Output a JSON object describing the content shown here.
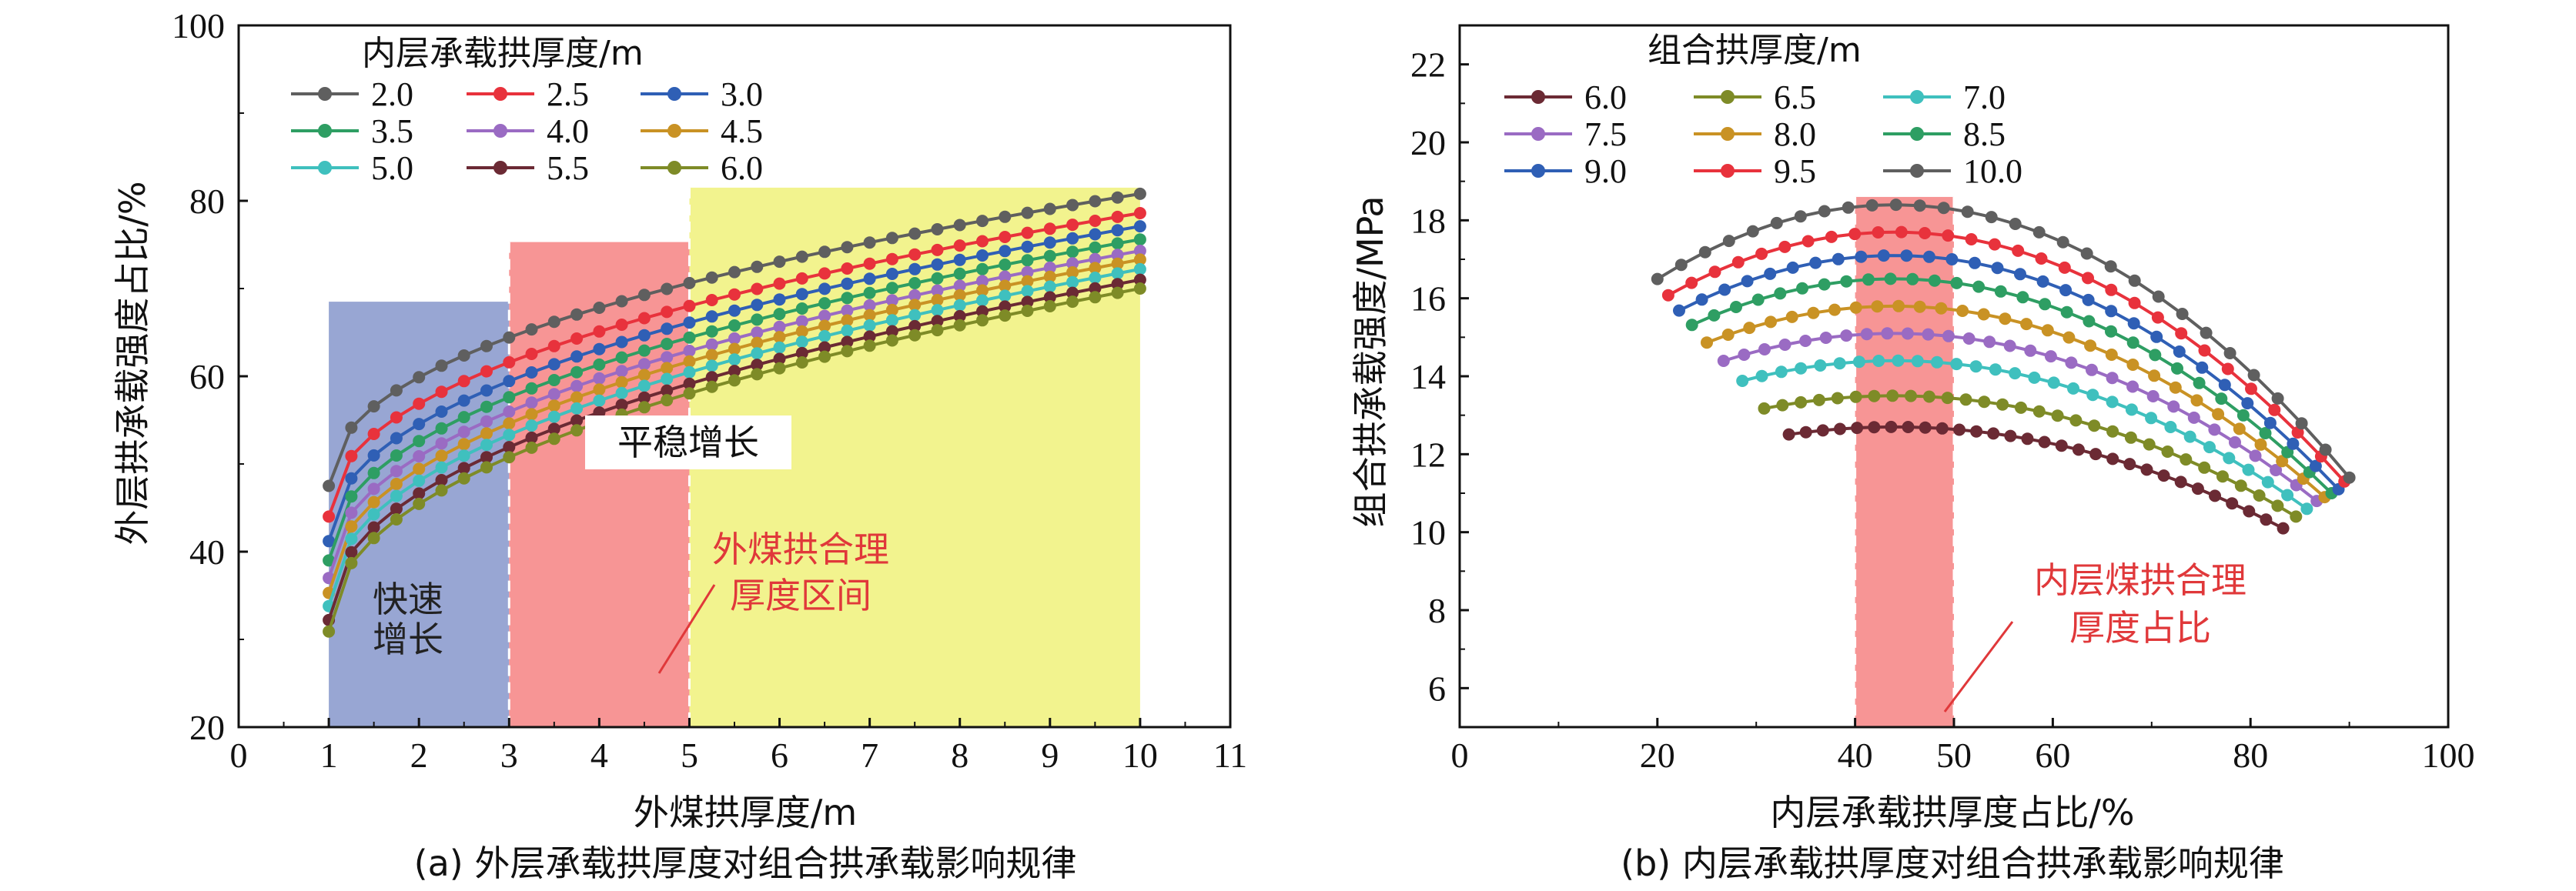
{
  "chart_data": [
    {
      "type": "line",
      "caption": "(a) 外层承载拱厚度对组合拱承载影响规律",
      "xlabel": "外煤拱厚度/m",
      "ylabel": "外层拱承载强度占比/%",
      "xlim": [
        0,
        11
      ],
      "ylim": [
        20,
        100
      ],
      "xticks": [
        0,
        1,
        2,
        3,
        4,
        5,
        6,
        7,
        8,
        9,
        10,
        11
      ],
      "yticks": [
        20,
        40,
        60,
        80,
        100
      ],
      "legend_title": "内层承载拱厚度/m",
      "legend_position": "top-left",
      "grid": false,
      "regions": [
        {
          "label": "快速\n增长",
          "x": [
            1,
            3
          ],
          "ymax": 68.5,
          "color": "#98A6D3",
          "label_color": "#222222"
        },
        {
          "label": "平稳增长",
          "x": [
            3,
            5
          ],
          "ymax": 75.3,
          "color": "#F79595",
          "label_color": "#111111"
        },
        {
          "label": "",
          "x": [
            5,
            10
          ],
          "ymax": 81.5,
          "color": "#F2F38E",
          "label_color": "#111111"
        }
      ],
      "region_dividers": [
        3,
        5
      ],
      "annotation": {
        "text": [
          "外煤拱合理",
          "厚度区间"
        ],
        "color": "#E0383A"
      },
      "x": [
        1.0,
        1.25,
        1.5,
        1.75,
        2.0,
        2.25,
        2.5,
        2.75,
        3.0,
        3.25,
        3.5,
        3.75,
        4.0,
        4.25,
        4.5,
        4.75,
        5.0,
        5.25,
        5.5,
        5.75,
        6.0,
        6.25,
        6.5,
        6.75,
        7.0,
        7.25,
        7.5,
        7.75,
        8.0,
        8.25,
        8.5,
        8.75,
        9.0,
        9.25,
        9.5,
        9.75,
        10.0
      ],
      "series": [
        {
          "name": "2.0",
          "color": "#5F5F5F",
          "y0": 47.5,
          "y1": 80.8
        },
        {
          "name": "2.5",
          "color": "#E8323C",
          "y0": 44.0,
          "y1": 78.6
        },
        {
          "name": "3.0",
          "color": "#2F5FB5",
          "y0": 41.2,
          "y1": 77.1
        },
        {
          "name": "3.5",
          "color": "#2E9E63",
          "y0": 39.0,
          "y1": 75.6
        },
        {
          "name": "4.0",
          "color": "#9A6BC3",
          "y0": 37.0,
          "y1": 74.3
        },
        {
          "name": "4.5",
          "color": "#C99224",
          "y0": 35.3,
          "y1": 73.3
        },
        {
          "name": "5.0",
          "color": "#3FC0BE",
          "y0": 33.8,
          "y1": 72.2
        },
        {
          "name": "5.5",
          "color": "#6B2A34",
          "y0": 32.2,
          "y1": 71.0
        },
        {
          "name": "6.0",
          "color": "#7E8B27",
          "y0": 30.9,
          "y1": 70.0
        }
      ]
    },
    {
      "type": "line",
      "caption": "(b) 内层承载拱厚度对组合拱承载影响规律",
      "xlabel": "内层承载拱厚度占比/%",
      "ylabel": "组合拱承载强度/MPa",
      "xlim": [
        0,
        100
      ],
      "ylim": [
        5,
        23
      ],
      "xticks": [
        0,
        20,
        40,
        60,
        80,
        100
      ],
      "xticks_extra": [
        50
      ],
      "yticks": [
        6,
        8,
        10,
        12,
        14,
        16,
        18,
        20,
        22
      ],
      "legend_title": "组合拱厚度/m",
      "legend_position": "top-left",
      "grid": false,
      "regions": [
        {
          "x": [
            40,
            50
          ],
          "ymax": 18.6,
          "color": "#F79595"
        }
      ],
      "annotation": {
        "text": [
          "内层煤拱合理",
          "厚度占比"
        ],
        "color": "#E0383A"
      },
      "series": [
        {
          "name": "6.0",
          "color": "#6B2A34",
          "x_start": 33.3,
          "x_end": 83.3,
          "peak": 12.7,
          "y_end": 10.1
        },
        {
          "name": "6.5",
          "color": "#7E8B27",
          "x_start": 30.8,
          "x_end": 84.6,
          "peak": 13.5,
          "y_end": 10.4
        },
        {
          "name": "7.0",
          "color": "#3FC0BE",
          "x_start": 28.6,
          "x_end": 85.7,
          "peak": 14.4,
          "y_end": 10.6
        },
        {
          "name": "7.5",
          "color": "#9A6BC3",
          "x_start": 26.7,
          "x_end": 86.7,
          "peak": 15.1,
          "y_end": 10.8
        },
        {
          "name": "8.0",
          "color": "#C99224",
          "x_start": 25.0,
          "x_end": 87.5,
          "peak": 15.8,
          "y_end": 10.9
        },
        {
          "name": "8.5",
          "color": "#2E9E63",
          "x_start": 23.5,
          "x_end": 88.2,
          "peak": 16.5,
          "y_end": 11.0
        },
        {
          "name": "9.0",
          "color": "#2F5FB5",
          "x_start": 22.2,
          "x_end": 88.9,
          "peak": 17.1,
          "y_end": 11.1
        },
        {
          "name": "9.5",
          "color": "#E8323C",
          "x_start": 21.1,
          "x_end": 89.5,
          "peak": 17.7,
          "y_end": 11.3
        },
        {
          "name": "10.0",
          "color": "#5F5F5F",
          "x_start": 20.0,
          "x_end": 90.0,
          "peak": 18.4,
          "y_end": 11.4
        }
      ],
      "points_per_series": 30
    }
  ]
}
